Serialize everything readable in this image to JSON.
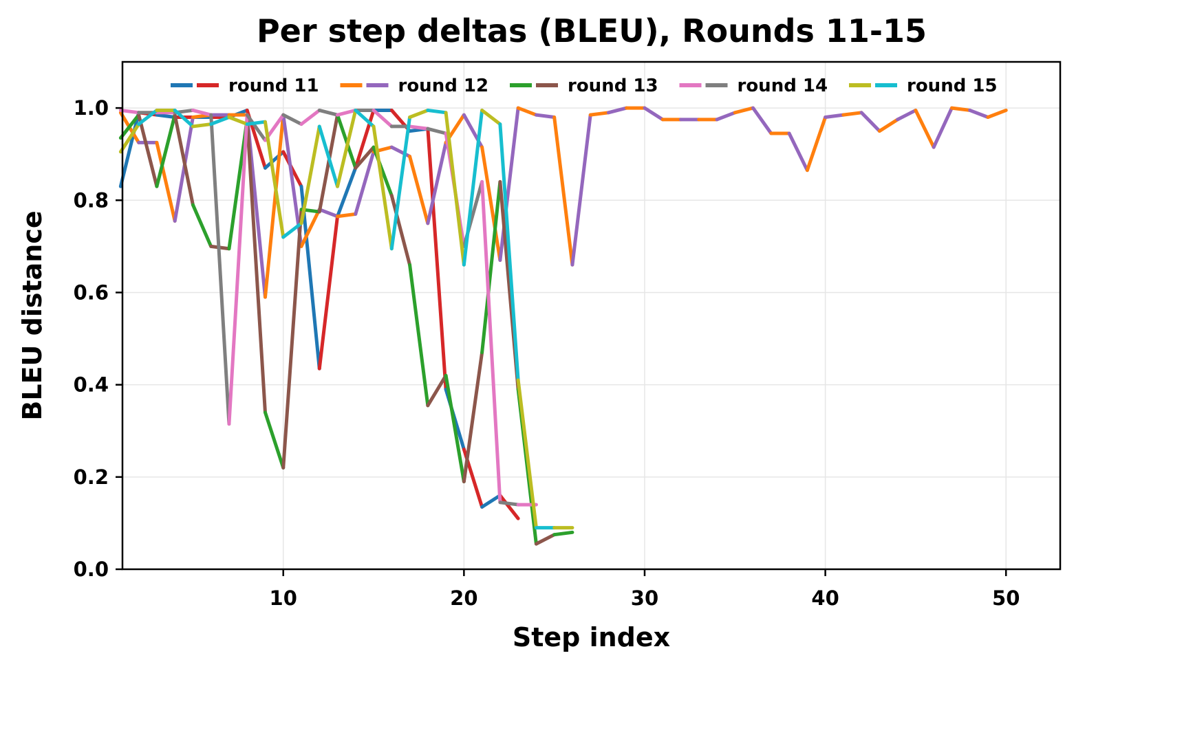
{
  "chart_data": {
    "type": "line",
    "title": "Per step deltas (BLEU), Rounds 11-15",
    "xlabel": "Step index",
    "ylabel": "BLEU distance",
    "xlim": [
      1.1,
      53
    ],
    "ylim": [
      0.0,
      1.1
    ],
    "xticks": [
      10,
      20,
      30,
      40,
      50
    ],
    "yticks": [
      0.0,
      0.2,
      0.4,
      0.6,
      0.8,
      1.0
    ],
    "xtick_labels": [
      "10",
      "20",
      "30",
      "40",
      "50"
    ],
    "ytick_labels": [
      "0.0",
      "0.2",
      "0.4",
      "0.6",
      "0.8",
      "1.0"
    ],
    "grid": true,
    "legend_position": "upper center, single row",
    "note": "Each round is drawn with two alternating segment colors (shown as two swatches in the legend).",
    "series": [
      {
        "name": "round 11",
        "colors": [
          "#1f77b4",
          "#d62728"
        ],
        "x": [
          1,
          2,
          3,
          4,
          5,
          6,
          7,
          8,
          9,
          10,
          11,
          12,
          13,
          14,
          15,
          16,
          17,
          18,
          19,
          20,
          21,
          22,
          23
        ],
        "values": [
          0.83,
          0.99,
          0.985,
          0.98,
          0.98,
          0.98,
          0.98,
          0.995,
          0.87,
          0.905,
          0.83,
          0.435,
          0.765,
          0.87,
          0.995,
          0.995,
          0.95,
          0.955,
          0.39,
          0.26,
          0.135,
          0.16,
          0.11
        ]
      },
      {
        "name": "round 12",
        "colors": [
          "#ff7f0e",
          "#9467bd"
        ],
        "x": [
          1,
          2,
          3,
          4,
          5,
          6,
          7,
          8,
          9,
          10,
          11,
          12,
          13,
          14,
          15,
          16,
          17,
          18,
          19,
          20,
          21,
          22,
          23,
          24,
          25,
          26,
          27,
          28,
          29,
          30,
          31,
          32,
          33,
          34,
          35,
          36,
          37,
          38,
          39,
          40,
          41,
          42,
          43,
          44,
          45,
          46,
          47,
          48,
          49,
          50
        ],
        "values": [
          0.99,
          0.925,
          0.925,
          0.755,
          0.98,
          0.985,
          0.985,
          0.985,
          0.59,
          0.985,
          0.7,
          0.78,
          0.765,
          0.77,
          0.905,
          0.915,
          0.895,
          0.75,
          0.925,
          0.985,
          0.915,
          0.67,
          1.0,
          0.985,
          0.98,
          0.66,
          0.985,
          0.99,
          1.0,
          1.0,
          0.975,
          0.975,
          0.975,
          0.975,
          0.99,
          1.0,
          0.945,
          0.945,
          0.865,
          0.98,
          0.985,
          0.99,
          0.95,
          0.975,
          0.995,
          0.915,
          1.0,
          0.995,
          0.98,
          0.995
        ]
      },
      {
        "name": "round 13",
        "colors": [
          "#2ca02c",
          "#8c564b"
        ],
        "x": [
          1,
          2,
          3,
          4,
          5,
          6,
          7,
          8,
          9,
          10,
          11,
          12,
          13,
          14,
          15,
          16,
          17,
          18,
          19,
          20,
          21,
          22,
          23,
          24,
          25,
          26
        ],
        "values": [
          0.935,
          0.985,
          0.83,
          0.985,
          0.79,
          0.7,
          0.695,
          0.975,
          0.34,
          0.22,
          0.78,
          0.775,
          0.985,
          0.87,
          0.915,
          0.81,
          0.66,
          0.355,
          0.42,
          0.19,
          0.47,
          0.84,
          0.39,
          0.055,
          0.075,
          0.08
        ]
      },
      {
        "name": "round 14",
        "colors": [
          "#e377c2",
          "#7f7f7f"
        ],
        "x": [
          1,
          2,
          3,
          4,
          5,
          6,
          7,
          8,
          9,
          10,
          11,
          12,
          13,
          14,
          15,
          16,
          17,
          18,
          19,
          20,
          21,
          22,
          23,
          24
        ],
        "values": [
          0.995,
          0.99,
          0.99,
          0.99,
          0.995,
          0.985,
          0.315,
          0.985,
          0.93,
          0.985,
          0.965,
          0.995,
          0.985,
          0.995,
          0.995,
          0.96,
          0.96,
          0.955,
          0.945,
          0.7,
          0.84,
          0.145,
          0.14,
          0.14
        ]
      },
      {
        "name": "round 15",
        "colors": [
          "#bcbd22",
          "#17becf"
        ],
        "x": [
          1,
          2,
          3,
          4,
          5,
          6,
          7,
          8,
          9,
          10,
          11,
          12,
          13,
          14,
          15,
          16,
          17,
          18,
          19,
          20,
          21,
          22,
          23,
          24,
          25,
          26
        ],
        "values": [
          0.905,
          0.965,
          0.995,
          0.995,
          0.96,
          0.965,
          0.98,
          0.965,
          0.97,
          0.72,
          0.75,
          0.96,
          0.83,
          0.995,
          0.96,
          0.695,
          0.98,
          0.995,
          0.99,
          0.66,
          0.995,
          0.965,
          0.41,
          0.09,
          0.09,
          0.09
        ]
      }
    ]
  }
}
